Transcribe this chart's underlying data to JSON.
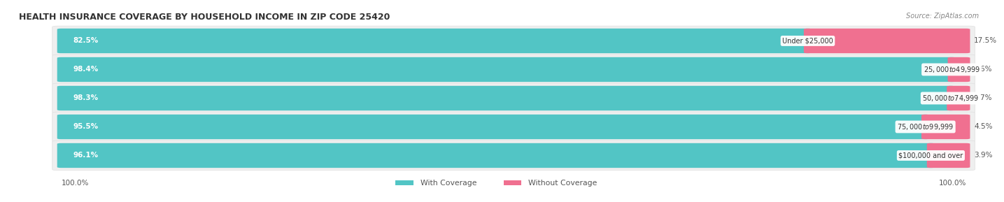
{
  "title": "HEALTH INSURANCE COVERAGE BY HOUSEHOLD INCOME IN ZIP CODE 25420",
  "source": "Source: ZipAtlas.com",
  "categories": [
    "Under $25,000",
    "$25,000 to $49,999",
    "$50,000 to $74,999",
    "$75,000 to $99,999",
    "$100,000 and over"
  ],
  "with_coverage": [
    82.5,
    98.4,
    98.3,
    95.5,
    96.1
  ],
  "without_coverage": [
    17.5,
    1.6,
    1.7,
    4.5,
    3.9
  ],
  "color_with": "#52C5C5",
  "color_without": "#F07090",
  "background_color": "#ffffff",
  "row_bg_color": "#efefef",
  "title_fontsize": 9.0,
  "label_fontsize": 7.5,
  "pct_fontsize": 7.5,
  "cat_fontsize": 7.0,
  "legend_fontsize": 7.8,
  "footer_fontsize": 7.5,
  "left_label": "100.0%",
  "right_label": "100.0%"
}
